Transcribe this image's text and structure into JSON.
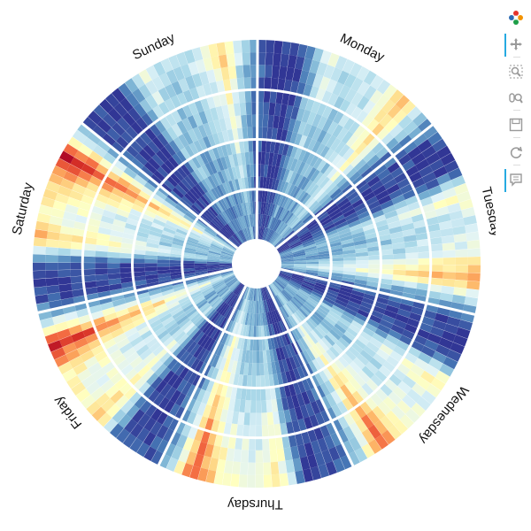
{
  "toolbar": {
    "tools": [
      {
        "name": "logo-icon",
        "interactable": false,
        "active": false
      },
      {
        "name": "pan-tool-icon",
        "interactable": true,
        "active": true
      },
      {
        "name": "box-zoom-tool-icon",
        "interactable": true,
        "active": false
      },
      {
        "name": "wheel-zoom-tool-icon",
        "interactable": true,
        "active": false
      },
      {
        "name": "save-tool-icon",
        "interactable": true,
        "active": false
      },
      {
        "name": "reset-tool-icon",
        "interactable": true,
        "active": false
      },
      {
        "name": "hover-tool-icon",
        "interactable": true,
        "active": true
      }
    ]
  },
  "chart_data": {
    "type": "heatmap",
    "subtype": "radial-annular-heatmap",
    "days": [
      "Monday",
      "Tuesday",
      "Wednesday",
      "Thursday",
      "Friday",
      "Saturday",
      "Sunday"
    ],
    "hours_per_day": 24,
    "ring_count": 16,
    "colormap": [
      "#313695",
      "#4575b4",
      "#74add1",
      "#abd9e9",
      "#e0f3f8",
      "#ffffbf",
      "#fee090",
      "#fdae61",
      "#f46d43",
      "#d73027",
      "#a50026"
    ],
    "value_range": [
      0,
      1
    ],
    "hourly_profile": [
      0.12,
      0.06,
      0.03,
      0.02,
      0.02,
      0.05,
      0.15,
      0.35,
      0.55,
      0.62,
      0.55,
      0.5,
      0.48,
      0.5,
      0.52,
      0.55,
      0.6,
      0.7,
      0.82,
      0.95,
      0.78,
      0.55,
      0.38,
      0.22
    ],
    "day_scale": {
      "Monday": 0.7,
      "Tuesday": 0.8,
      "Wednesday": 0.85,
      "Thursday": 0.9,
      "Friday": 1.0,
      "Saturday": 1.05,
      "Sunday": 0.65
    },
    "grid_rings": 3,
    "legend": "none"
  }
}
